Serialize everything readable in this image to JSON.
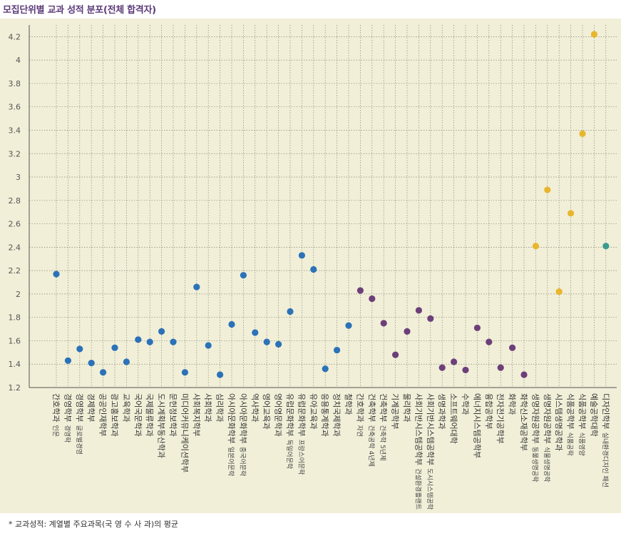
{
  "chart_data": {
    "type": "scatter",
    "title": "모집단위별 교과 성적 분포(전체 합격자)",
    "xlabel": "",
    "ylabel": "",
    "ylim": [
      1.2,
      4.3
    ],
    "yticks": [
      1.2,
      1.4,
      1.6,
      1.8,
      2,
      2.2,
      2.4,
      2.6,
      2.8,
      3,
      3.2,
      3.4,
      3.6,
      3.8,
      4,
      4.2
    ],
    "grid": true,
    "colors": {
      "blue": "#2b72b8",
      "purple": "#6d3f7a",
      "gold": "#e8b62e",
      "teal": "#3a9b8e"
    },
    "categories": [
      {
        "label": "간호학과 인문",
        "value": 2.17,
        "color": "blue"
      },
      {
        "label": "경영학부 경영학",
        "value": 1.43,
        "color": "blue"
      },
      {
        "label": "경영학부 글로벌경영",
        "value": 1.53,
        "color": "blue"
      },
      {
        "label": "경제학부",
        "value": 1.41,
        "color": "blue"
      },
      {
        "label": "공공인재학부",
        "value": 1.33,
        "color": "blue"
      },
      {
        "label": "광고홍보학과",
        "value": 1.54,
        "color": "blue"
      },
      {
        "label": "교육학과",
        "value": 1.42,
        "color": "blue"
      },
      {
        "label": "국어국문학과",
        "value": 1.61,
        "color": "blue"
      },
      {
        "label": "국제물류학과",
        "value": 1.59,
        "color": "blue"
      },
      {
        "label": "도시계획부동산학과",
        "value": 1.68,
        "color": "blue"
      },
      {
        "label": "문헌정보학과",
        "value": 1.59,
        "color": "blue"
      },
      {
        "label": "미디어커뮤니케이션학부",
        "value": 1.33,
        "color": "blue"
      },
      {
        "label": "사회복지학부",
        "value": 2.06,
        "color": "blue"
      },
      {
        "label": "사회학과",
        "value": 1.56,
        "color": "blue"
      },
      {
        "label": "심리학과",
        "value": 1.31,
        "color": "blue"
      },
      {
        "label": "아시아문화학부 일본어문학",
        "value": 1.74,
        "color": "blue"
      },
      {
        "label": "아시아문화학부 중국어문학",
        "value": 2.16,
        "color": "blue"
      },
      {
        "label": "역사학과",
        "value": 1.67,
        "color": "blue"
      },
      {
        "label": "영어교육과",
        "value": 1.59,
        "color": "blue"
      },
      {
        "label": "영어영문학과",
        "value": 1.57,
        "color": "blue"
      },
      {
        "label": "유럽문화학부 독일어문학",
        "value": 1.85,
        "color": "blue"
      },
      {
        "label": "유럽문화학부 프랑스어문학",
        "value": 2.33,
        "color": "blue"
      },
      {
        "label": "유아교육과",
        "value": 2.21,
        "color": "blue"
      },
      {
        "label": "응용통계학과",
        "value": 1.36,
        "color": "blue"
      },
      {
        "label": "정치국제학과",
        "value": 1.52,
        "color": "blue"
      },
      {
        "label": "철학과",
        "value": 1.73,
        "color": "blue"
      },
      {
        "label": "간호학과 자연",
        "value": 2.03,
        "color": "purple"
      },
      {
        "label": "건축학부 건축공학 4년제",
        "value": 1.96,
        "color": "purple"
      },
      {
        "label": "건축학부 건축학 5년제",
        "value": 1.75,
        "color": "purple"
      },
      {
        "label": "기계공학부",
        "value": 1.48,
        "color": "purple"
      },
      {
        "label": "물리학과",
        "value": 1.68,
        "color": "purple"
      },
      {
        "label": "사회기반시스템공학부 건설환경플랜트",
        "value": 1.86,
        "color": "purple"
      },
      {
        "label": "사회기반시스템공학부 도시시스템공학",
        "value": 1.79,
        "color": "purple"
      },
      {
        "label": "생명과학과",
        "value": 1.37,
        "color": "purple"
      },
      {
        "label": "소프트웨어대학",
        "value": 1.42,
        "color": "purple"
      },
      {
        "label": "수학과",
        "value": 1.35,
        "color": "purple"
      },
      {
        "label": "에너지시스템공학부",
        "value": 1.71,
        "color": "purple"
      },
      {
        "label": "융합공학부",
        "value": 1.59,
        "color": "purple"
      },
      {
        "label": "전자전기공학부",
        "value": 1.37,
        "color": "purple"
      },
      {
        "label": "화학과",
        "value": 1.54,
        "color": "purple"
      },
      {
        "label": "화학신소재공학부",
        "value": 1.31,
        "color": "purple"
      },
      {
        "label": "생명자원공학부 동물생명공학",
        "value": 2.41,
        "color": "gold"
      },
      {
        "label": "생명자원공학부 식물생명공학",
        "value": 2.89,
        "color": "gold"
      },
      {
        "label": "시스템생명공학과",
        "value": 2.02,
        "color": "gold"
      },
      {
        "label": "식품공학부 식품공학",
        "value": 2.69,
        "color": "gold"
      },
      {
        "label": "식품공학부 식품영양",
        "value": 3.37,
        "color": "gold"
      },
      {
        "label": "예술공학대학",
        "value": 4.22,
        "color": "gold"
      },
      {
        "label": "디자인학부 실내환경디자인 패션",
        "value": 2.41,
        "color": "teal"
      }
    ]
  },
  "footnote": "* 교과성적: 계열별 주요과목(국 영 수 사 과)의 평균"
}
